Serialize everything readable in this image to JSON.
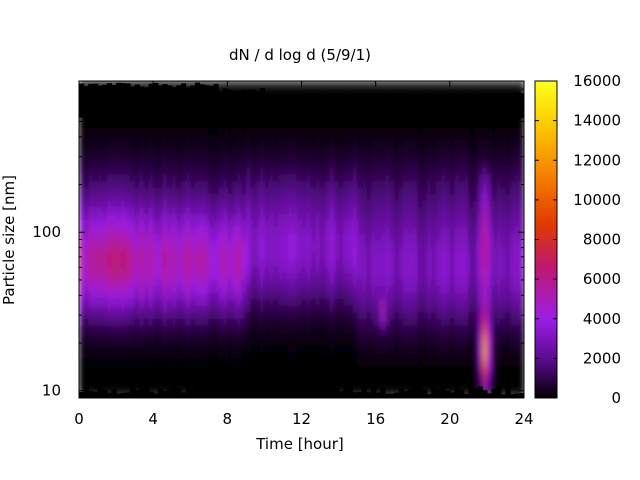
{
  "chart_data": {
    "type": "heatmap",
    "title": "dN / d log d (5/9/1)",
    "xlabel": "Time [hour]",
    "ylabel": "Particle size [nm]",
    "xlim": [
      0,
      24
    ],
    "ylim": [
      9,
      900
    ],
    "yscale": "log",
    "xticks": [
      "0",
      "4",
      "8",
      "12",
      "16",
      "20",
      "24"
    ],
    "yticks": [
      "10",
      "100"
    ],
    "colorbar": {
      "range": [
        0,
        16000
      ],
      "ticks": [
        "0",
        "2000",
        "4000",
        "6000",
        "8000",
        "10000",
        "12000",
        "14000",
        "16000"
      ],
      "palette": [
        "#000000",
        "#5a0a8f",
        "#9c1ee6",
        "#c0196a",
        "#e23a00",
        "#f78800",
        "#fbd200",
        "#ffff20"
      ]
    },
    "features": [
      {
        "description": "broad mode",
        "time_range": [
          0,
          9
        ],
        "size_peak_nm": 65,
        "value": 5200
      },
      {
        "description": "burst",
        "time": 21.9,
        "size_range_nm": [
          10,
          35
        ],
        "value": 12000
      },
      {
        "description": "growth plume",
        "time": 22,
        "size_range_nm": [
          35,
          250
        ],
        "value": 4000
      },
      {
        "description": "streak",
        "time": 16.4,
        "size_nm": 30,
        "value": 3000
      }
    ]
  }
}
